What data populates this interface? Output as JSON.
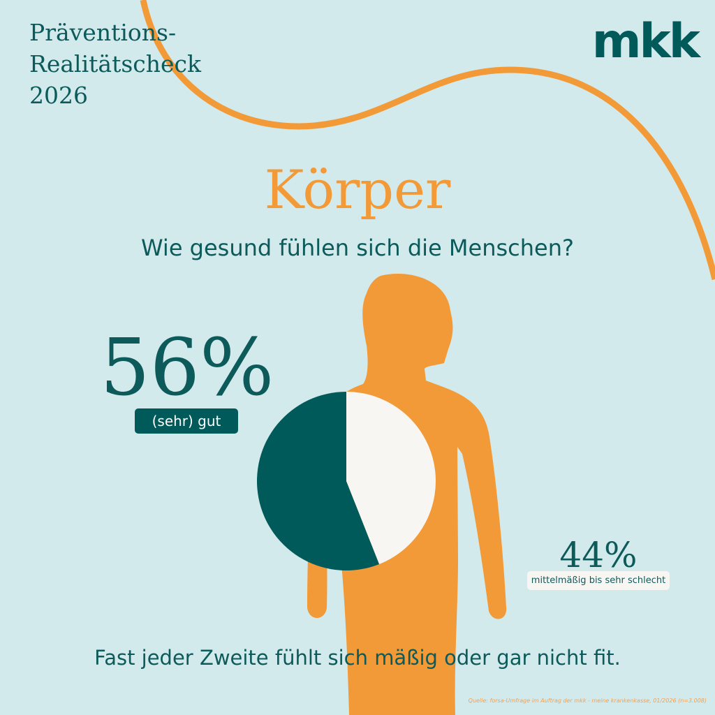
{
  "header": {
    "lines": [
      "Präventions-",
      "Realitätscheck",
      "2026"
    ],
    "logo": "mkk"
  },
  "chart_data": {
    "type": "pie",
    "title": "Körper",
    "subtitle": "Wie gesund fühlen sich die Menschen?",
    "categories": [
      "(sehr) gut",
      "mittelmäßig bis sehr schlecht"
    ],
    "values": [
      56,
      44
    ],
    "value_labels": [
      "56%",
      "44%"
    ],
    "colors": [
      "#005a5a",
      "#f8f6f2"
    ],
    "annotation": "Fast jeder Zweite fühlt sich mäßig oder gar nicht fit.",
    "source": "Quelle: forsa-Umfrage im Auftrag der mkk - meine krankenkasse, 01/2026 (n=3.008)"
  }
}
